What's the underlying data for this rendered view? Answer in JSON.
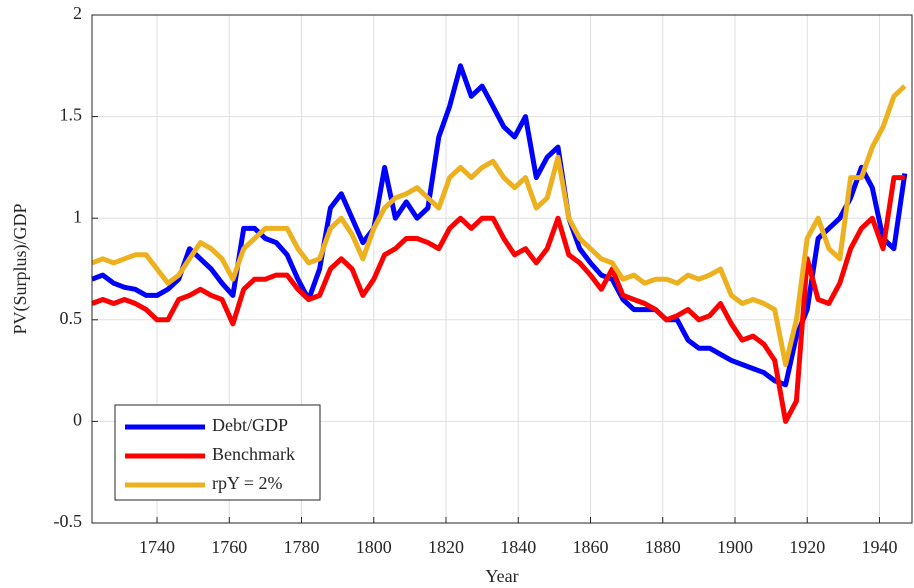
{
  "chart_data": {
    "type": "line",
    "xlabel": "Year",
    "ylabel": "PV(Surplus)/GDP",
    "x": [
      1722,
      1725,
      1728,
      1731,
      1734,
      1737,
      1740,
      1743,
      1746,
      1749,
      1752,
      1755,
      1758,
      1761,
      1764,
      1767,
      1770,
      1773,
      1776,
      1779,
      1782,
      1785,
      1788,
      1791,
      1794,
      1797,
      1800,
      1803,
      1806,
      1809,
      1812,
      1815,
      1818,
      1821,
      1824,
      1827,
      1830,
      1833,
      1836,
      1839,
      1842,
      1845,
      1848,
      1851,
      1854,
      1857,
      1860,
      1863,
      1866,
      1869,
      1872,
      1875,
      1878,
      1881,
      1884,
      1887,
      1890,
      1893,
      1896,
      1899,
      1902,
      1905,
      1908,
      1911,
      1914,
      1917,
      1920,
      1923,
      1926,
      1929,
      1932,
      1935,
      1938,
      1941,
      1944,
      1947
    ],
    "series": [
      {
        "name": "Debt/GDP",
        "color": "#0000ff",
        "values": [
          0.7,
          0.72,
          0.68,
          0.66,
          0.65,
          0.62,
          0.62,
          0.65,
          0.7,
          0.85,
          0.8,
          0.75,
          0.68,
          0.62,
          0.95,
          0.95,
          0.9,
          0.88,
          0.82,
          0.7,
          0.6,
          0.75,
          1.05,
          1.12,
          1.0,
          0.88,
          0.95,
          1.25,
          1.0,
          1.08,
          1.0,
          1.05,
          1.4,
          1.55,
          1.75,
          1.6,
          1.65,
          1.55,
          1.45,
          1.4,
          1.5,
          1.2,
          1.3,
          1.35,
          1.0,
          0.85,
          0.78,
          0.72,
          0.7,
          0.6,
          0.55,
          0.55,
          0.55,
          0.5,
          0.5,
          0.4,
          0.36,
          0.36,
          0.33,
          0.3,
          0.28,
          0.26,
          0.24,
          0.2,
          0.18,
          0.42,
          0.55,
          0.9,
          0.95,
          1.0,
          1.1,
          1.25,
          1.15,
          0.9,
          0.85,
          1.22
        ]
      },
      {
        "name": "Benchmark",
        "color": "#ff0000",
        "values": [
          0.58,
          0.6,
          0.58,
          0.6,
          0.58,
          0.55,
          0.5,
          0.5,
          0.6,
          0.62,
          0.65,
          0.62,
          0.6,
          0.48,
          0.65,
          0.7,
          0.7,
          0.72,
          0.72,
          0.65,
          0.6,
          0.62,
          0.75,
          0.8,
          0.75,
          0.62,
          0.7,
          0.82,
          0.85,
          0.9,
          0.9,
          0.88,
          0.85,
          0.95,
          1.0,
          0.95,
          1.0,
          1.0,
          0.9,
          0.82,
          0.85,
          0.78,
          0.85,
          1.0,
          0.82,
          0.78,
          0.72,
          0.65,
          0.75,
          0.62,
          0.6,
          0.58,
          0.55,
          0.5,
          0.52,
          0.55,
          0.5,
          0.52,
          0.58,
          0.48,
          0.4,
          0.42,
          0.38,
          0.3,
          0.0,
          0.1,
          0.8,
          0.6,
          0.58,
          0.68,
          0.85,
          0.95,
          1.0,
          0.85,
          1.2,
          1.2
        ]
      },
      {
        "name": "rpY = 2%",
        "color": "#edb120",
        "values": [
          0.78,
          0.8,
          0.78,
          0.8,
          0.82,
          0.82,
          0.75,
          0.68,
          0.72,
          0.8,
          0.88,
          0.85,
          0.8,
          0.7,
          0.85,
          0.9,
          0.95,
          0.95,
          0.95,
          0.85,
          0.78,
          0.8,
          0.95,
          1.0,
          0.92,
          0.8,
          0.95,
          1.05,
          1.1,
          1.12,
          1.15,
          1.1,
          1.05,
          1.2,
          1.25,
          1.2,
          1.25,
          1.28,
          1.2,
          1.15,
          1.2,
          1.05,
          1.1,
          1.3,
          1.0,
          0.9,
          0.85,
          0.8,
          0.78,
          0.7,
          0.72,
          0.68,
          0.7,
          0.7,
          0.68,
          0.72,
          0.7,
          0.72,
          0.75,
          0.62,
          0.58,
          0.6,
          0.58,
          0.55,
          0.28,
          0.5,
          0.9,
          1.0,
          0.85,
          0.8,
          1.2,
          1.2,
          1.35,
          1.45,
          1.6,
          1.65
        ]
      }
    ],
    "xlim": [
      1722,
      1949
    ],
    "xticks": [
      1740,
      1760,
      1780,
      1800,
      1820,
      1840,
      1860,
      1880,
      1900,
      1920,
      1940
    ],
    "ylim": [
      -0.5,
      2
    ],
    "yticks": [
      -0.5,
      0,
      0.5,
      1,
      1.5,
      2
    ],
    "grid": true,
    "legend": "lower left"
  }
}
